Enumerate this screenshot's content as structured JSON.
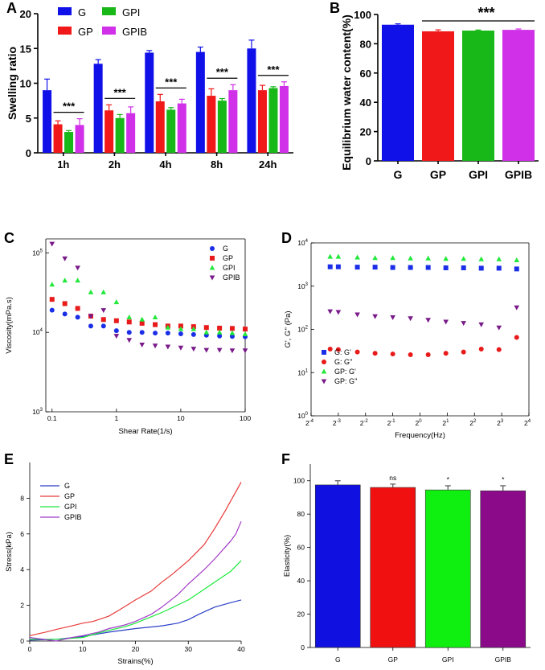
{
  "chart_data": [
    {
      "panel": "A",
      "type": "bar",
      "ylabel": "Swelling ratio",
      "ylim": [
        0,
        20
      ],
      "yticks": [
        0,
        5,
        10,
        15,
        20
      ],
      "categories": [
        "1h",
        "2h",
        "4h",
        "8h",
        "24h"
      ],
      "series": [
        {
          "name": "G",
          "color": "#1010e8",
          "values": [
            9.0,
            12.8,
            14.4,
            14.5,
            15.0
          ],
          "errors": [
            1.6,
            0.6,
            0.3,
            0.7,
            1.2
          ]
        },
        {
          "name": "GP",
          "color": "#f01818",
          "values": [
            4.1,
            6.1,
            7.4,
            8.2,
            9.0
          ],
          "errors": [
            0.5,
            0.8,
            1.0,
            1.0,
            0.7
          ]
        },
        {
          "name": "GPI",
          "color": "#18b818",
          "values": [
            3.0,
            5.0,
            6.2,
            7.5,
            9.3
          ],
          "errors": [
            0.2,
            0.5,
            0.3,
            0.3,
            0.2
          ]
        },
        {
          "name": "GPIB",
          "color": "#d030e8",
          "values": [
            4.0,
            5.7,
            7.1,
            9.0,
            9.6
          ],
          "errors": [
            0.9,
            0.9,
            0.6,
            0.8,
            0.6
          ]
        }
      ],
      "annotations": [
        "***",
        "***",
        "***",
        "***",
        "***"
      ]
    },
    {
      "panel": "B",
      "type": "bar",
      "ylabel": "Equilibrium water content(%)",
      "ylim": [
        0,
        100
      ],
      "yticks": [
        0,
        20,
        40,
        60,
        80,
        100
      ],
      "categories": [
        "G",
        "GP",
        "GPI",
        "GPIB"
      ],
      "values": [
        93.0,
        88.5,
        89.0,
        89.5
      ],
      "errors": [
        0.6,
        1.0,
        0.4,
        0.6
      ],
      "colors": [
        "#1010e8",
        "#f01818",
        "#18b818",
        "#d030e8"
      ],
      "annotation": "***"
    },
    {
      "panel": "C",
      "type": "scatter",
      "xlabel": "Shear Rate(1/s)",
      "ylabel": "Viscosity(mPa.s)",
      "xscale": "log",
      "yscale": "log",
      "xlim": [
        0.08,
        100
      ],
      "ylim": [
        1000,
        150000
      ],
      "xticks": [
        0.1,
        1,
        10,
        100
      ],
      "xticklabels": [
        "0.1",
        "1",
        "10",
        "100"
      ],
      "yticks": [
        1000,
        10000,
        100000
      ],
      "series": [
        {
          "name": "G",
          "color": "#1a2ee8",
          "marker": "circle",
          "x": [
            0.1,
            0.158,
            0.25,
            0.4,
            0.63,
            1.0,
            1.58,
            2.5,
            4.0,
            6.3,
            10,
            15.8,
            25,
            40,
            63,
            100
          ],
          "y": [
            19000,
            17000,
            15500,
            12000,
            12000,
            10500,
            10000,
            10000,
            9800,
            9800,
            9600,
            9400,
            9200,
            9000,
            8900,
            8800
          ]
        },
        {
          "name": "GP",
          "color": "#e81a1a",
          "marker": "square",
          "x": [
            0.1,
            0.158,
            0.25,
            0.4,
            0.63,
            1.0,
            1.58,
            2.5,
            4.0,
            6.3,
            10,
            15.8,
            25,
            40,
            63,
            100
          ],
          "y": [
            26000,
            23000,
            20000,
            16000,
            14500,
            14000,
            13500,
            13000,
            12500,
            12000,
            12000,
            11800,
            11500,
            11300,
            11200,
            11000
          ]
        },
        {
          "name": "GPI",
          "color": "#22e83a",
          "marker": "triangle-up",
          "x": [
            0.1,
            0.158,
            0.25,
            0.4,
            0.63,
            1.0,
            1.58,
            2.5,
            4.0,
            6.3,
            10,
            15.8,
            25,
            40,
            63,
            100
          ],
          "y": [
            40000,
            45000,
            45000,
            32000,
            32000,
            24000,
            15500,
            14500,
            15500,
            11500,
            11000,
            11000,
            10000,
            10000,
            9800,
            9500
          ]
        },
        {
          "name": "GPIB",
          "color": "#7a1a8a",
          "marker": "triangle-down",
          "x": [
            0.1,
            0.158,
            0.25,
            0.4,
            0.63,
            1.0,
            1.58,
            2.5,
            4.0,
            6.3,
            10,
            15.8,
            25,
            40,
            63,
            100
          ],
          "y": [
            130000,
            85000,
            65000,
            16000,
            19000,
            9000,
            8000,
            7000,
            6800,
            6600,
            6400,
            6200,
            6000,
            6000,
            5900,
            5900
          ]
        }
      ]
    },
    {
      "panel": "D",
      "type": "scatter",
      "xlabel": "Frequency(Hz)",
      "ylabel": "G', G'' (Pa)",
      "xscale": "log2",
      "yscale": "log",
      "xlim": [
        -4,
        4
      ],
      "ylim": [
        1,
        10000
      ],
      "xticks": [
        -4,
        -3,
        -2,
        -1,
        0,
        1,
        2,
        3,
        4
      ],
      "xtick_base": "2",
      "yticks": [
        1,
        10,
        100,
        1000,
        10000
      ],
      "series": [
        {
          "name": "G: G'",
          "color": "#1a2ee8",
          "marker": "square",
          "log2x": [
            -3.3,
            -3.0,
            -2.3,
            -1.65,
            -1.0,
            -0.35,
            0.3,
            0.95,
            1.6,
            2.25,
            2.9,
            3.55
          ],
          "y": [
            2800,
            2800,
            2750,
            2750,
            2700,
            2700,
            2700,
            2650,
            2650,
            2600,
            2600,
            2500
          ]
        },
        {
          "name": "G: G''",
          "color": "#e81a1a",
          "marker": "circle",
          "log2x": [
            -3.3,
            -3.0,
            -2.3,
            -1.65,
            -1.0,
            -0.35,
            0.3,
            0.95,
            1.6,
            2.25,
            2.9,
            3.55
          ],
          "y": [
            35,
            34,
            30,
            28,
            27,
            26,
            26,
            28,
            30,
            35,
            34,
            65
          ]
        },
        {
          "name": "GP: G'",
          "color": "#22e83a",
          "marker": "triangle-up",
          "log2x": [
            -3.3,
            -3.0,
            -2.3,
            -1.65,
            -1.0,
            -0.35,
            0.3,
            0.95,
            1.6,
            2.25,
            2.9,
            3.55
          ],
          "y": [
            4800,
            4800,
            4600,
            4500,
            4500,
            4400,
            4400,
            4300,
            4300,
            4200,
            4200,
            4000
          ]
        },
        {
          "name": "GP: G''",
          "color": "#7a1a8a",
          "marker": "triangle-down",
          "log2x": [
            -3.3,
            -3.0,
            -2.3,
            -1.65,
            -1.0,
            -0.35,
            0.3,
            0.95,
            1.6,
            2.25,
            2.9,
            3.55
          ],
          "y": [
            260,
            250,
            220,
            200,
            190,
            180,
            165,
            150,
            140,
            130,
            110,
            320
          ]
        }
      ]
    },
    {
      "panel": "E",
      "type": "line",
      "xlabel": "Strains(%)",
      "ylabel": "Stress(kPa)",
      "xlim": [
        0,
        40
      ],
      "ylim": [
        0,
        10
      ],
      "xticks": [
        0,
        10,
        20,
        30,
        40
      ],
      "yticks": [
        0,
        2,
        4,
        6,
        8
      ],
      "series": [
        {
          "name": "G",
          "color": "#2a3fc8",
          "x": [
            0,
            5,
            10,
            15,
            20,
            25,
            28,
            30,
            32,
            35,
            38,
            40
          ],
          "y": [
            0.05,
            0.1,
            0.25,
            0.5,
            0.7,
            0.85,
            1.0,
            1.2,
            1.5,
            1.9,
            2.15,
            2.3
          ]
        },
        {
          "name": "GP",
          "color": "#e83a3a",
          "x": [
            0,
            3,
            5,
            8,
            10,
            12,
            15,
            17,
            20,
            23,
            25,
            27,
            30,
            33,
            35,
            37,
            40
          ],
          "y": [
            0.3,
            0.5,
            0.65,
            0.85,
            1.0,
            1.1,
            1.4,
            1.75,
            2.3,
            2.8,
            3.3,
            3.75,
            4.5,
            5.4,
            6.3,
            7.3,
            8.9
          ]
        },
        {
          "name": "GPI",
          "color": "#1ae83a",
          "x": [
            0,
            5,
            10,
            13,
            15,
            18,
            20,
            25,
            30,
            32,
            35,
            38,
            40
          ],
          "y": [
            0.1,
            0.1,
            0.2,
            0.45,
            0.6,
            0.8,
            1.0,
            1.6,
            2.3,
            2.7,
            3.3,
            3.9,
            4.5
          ]
        },
        {
          "name": "GPIB",
          "color": "#a03ac8",
          "x": [
            0,
            5,
            8,
            10,
            13,
            15,
            18,
            20,
            23,
            25,
            28,
            30,
            33,
            35,
            38,
            39,
            40
          ],
          "y": [
            0.2,
            0.0,
            0.2,
            0.3,
            0.5,
            0.7,
            0.9,
            1.1,
            1.5,
            1.9,
            2.6,
            3.2,
            4.0,
            4.6,
            5.6,
            6.0,
            6.7
          ]
        }
      ]
    },
    {
      "panel": "F",
      "type": "bar",
      "ylabel": "Elasticity(%)",
      "ylim": [
        0,
        110
      ],
      "yticks": [
        0,
        20,
        40,
        60,
        80,
        100
      ],
      "categories": [
        "G",
        "GP",
        "GPI",
        "GPIB"
      ],
      "values": [
        97.5,
        96.0,
        94.5,
        94.0
      ],
      "errors": [
        2.5,
        2.0,
        2.5,
        3.0
      ],
      "colors": [
        "#1010e0",
        "#f01010",
        "#10f010",
        "#8a0a8a"
      ],
      "significance": [
        "",
        "ns",
        "*",
        "*"
      ]
    }
  ]
}
